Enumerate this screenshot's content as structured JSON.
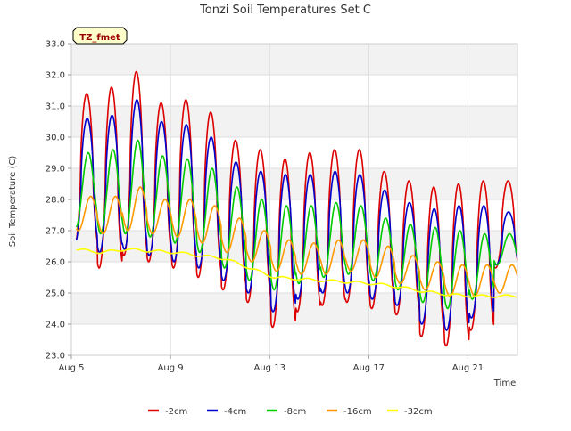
{
  "chart_data": {
    "type": "line",
    "title": "Tonzi Soil Temperatures Set C",
    "xlabel": "Time",
    "ylabel": "Soil Temperature (C)",
    "annotation": "TZ_fmet",
    "legend_position": "bottom-center",
    "grid": true,
    "x_range_days": [
      5,
      23
    ],
    "ylim": [
      23.0,
      33.0
    ],
    "y_ticks": [
      "23.0",
      "24.0",
      "25.0",
      "26.0",
      "27.0",
      "28.0",
      "29.0",
      "30.0",
      "31.0",
      "32.0",
      "33.0"
    ],
    "x_ticks": [
      {
        "label": "Aug 5",
        "day": 5
      },
      {
        "label": "Aug 9",
        "day": 9
      },
      {
        "label": "Aug 13",
        "day": 13
      },
      {
        "label": "Aug 17",
        "day": 17
      },
      {
        "label": "Aug 21",
        "day": 21
      }
    ],
    "series": [
      {
        "name": "-2cm",
        "color": "#dd0000",
        "daily_max": [
          31.4,
          31.6,
          32.1,
          31.1,
          31.2,
          30.8,
          29.9,
          29.6,
          29.3,
          29.5,
          29.6,
          29.6,
          28.9,
          28.6,
          28.4,
          28.5,
          28.6,
          28.6
        ],
        "daily_min": [
          26.5,
          25.8,
          26.2,
          26.0,
          25.8,
          25.5,
          25.1,
          24.7,
          23.9,
          24.4,
          24.6,
          24.7,
          24.5,
          24.3,
          23.6,
          23.3,
          23.8,
          25.8
        ]
      },
      {
        "name": "-4cm",
        "color": "#0000cc",
        "daily_max": [
          30.6,
          30.7,
          31.2,
          30.5,
          30.4,
          30.0,
          29.2,
          28.9,
          28.8,
          28.8,
          28.9,
          28.8,
          28.3,
          27.9,
          27.7,
          27.8,
          27.8,
          27.6
        ],
        "daily_min": [
          26.6,
          26.3,
          26.4,
          26.2,
          26.0,
          25.8,
          25.4,
          25.0,
          24.4,
          24.8,
          25.0,
          25.0,
          24.8,
          24.6,
          24.0,
          23.8,
          24.2,
          25.9
        ]
      },
      {
        "name": "-8cm",
        "color": "#00cc00",
        "daily_max": [
          29.5,
          29.6,
          29.9,
          29.4,
          29.3,
          29.0,
          28.4,
          28.0,
          27.8,
          27.8,
          27.9,
          27.8,
          27.4,
          27.2,
          27.1,
          27.0,
          26.9,
          26.9
        ],
        "daily_min": [
          27.1,
          26.9,
          26.9,
          26.8,
          26.6,
          26.3,
          25.8,
          25.4,
          25.1,
          25.3,
          25.5,
          25.6,
          25.4,
          25.1,
          24.7,
          24.5,
          24.8,
          25.9
        ]
      },
      {
        "name": "-16cm",
        "color": "#ff9900",
        "daily_max": [
          28.1,
          28.1,
          28.4,
          28.0,
          28.0,
          27.8,
          27.4,
          27.0,
          26.7,
          26.6,
          26.7,
          26.7,
          26.5,
          26.2,
          26.0,
          25.9,
          25.9,
          25.9
        ],
        "daily_min": [
          27.0,
          26.9,
          27.0,
          26.9,
          26.8,
          26.6,
          26.3,
          26.0,
          25.7,
          25.6,
          25.6,
          25.7,
          25.5,
          25.3,
          25.1,
          24.9,
          24.9,
          25.0
        ]
      },
      {
        "name": "-32cm",
        "color": "#ffff00",
        "daily_mean": [
          26.4,
          26.3,
          26.4,
          26.35,
          26.3,
          26.2,
          26.1,
          25.8,
          25.5,
          25.45,
          25.4,
          25.35,
          25.3,
          25.2,
          25.05,
          24.95,
          24.9,
          24.9
        ]
      }
    ]
  }
}
